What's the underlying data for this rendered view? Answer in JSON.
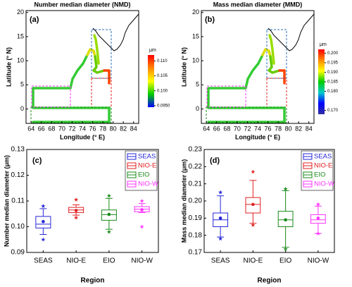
{
  "chart_data": [
    {
      "type": "map",
      "panel_label": "(a)",
      "title": "Number median diameter (NMD)",
      "x_label": "Longitude (° E)",
      "y_label": "Latitude (° N)",
      "xlim": [
        63,
        85
      ],
      "xticks": [
        64,
        66,
        68,
        70,
        72,
        74,
        76,
        78,
        80,
        82,
        84
      ],
      "ylim": [
        -3,
        20.4
      ],
      "yticks": [
        0,
        5,
        10,
        15,
        20
      ],
      "colorbar": {
        "unit": "μm",
        "lim": [
          0.0945,
          0.112
        ],
        "colors": [
          "#0000ff",
          "#00cc00",
          "#ffff00",
          "#ff8800",
          "#ff0000"
        ],
        "ticks": [
          {
            "value": 0.11,
            "label": "0.110"
          },
          0.105,
          {
            "value": 0.1,
            "label": "0.100"
          },
          {
            "value": 0.095,
            "label": "0.0950"
          }
        ]
      }
    },
    {
      "type": "map",
      "panel_label": "(b)",
      "title": "Mass median diameter (MMD)",
      "x_label": "Longitude (° E)",
      "y_label": "Latitude (° N)",
      "xlim": [
        63,
        85
      ],
      "xticks": [
        64,
        66,
        68,
        70,
        72,
        74,
        76,
        78,
        80,
        82,
        84
      ],
      "ylim": [
        -3,
        20.4
      ],
      "yticks": [
        0,
        5,
        10,
        15,
        20
      ],
      "colorbar": {
        "unit": "μm",
        "lim": [
          0.168,
          0.202
        ],
        "colors": [
          "#3030a0",
          "#0000ff",
          "#00cccc",
          "#00cc00",
          "#ffff00",
          "#ff8800",
          "#ff0000"
        ],
        "ticks": [
          {
            "value": 0.2,
            "label": "0.200"
          },
          0.195,
          {
            "value": 0.19,
            "label": "0.190"
          },
          0.185,
          {
            "value": 0.18,
            "label": "0.180"
          },
          {
            "value": 0.17,
            "label": "0.170"
          }
        ]
      }
    },
    {
      "type": "box",
      "panel_label": "(c)",
      "x_label": "Region",
      "y_label": "Number median diameter (μm)",
      "categories": [
        "SEAS",
        "NIO-E",
        "EIO",
        "NIO-W"
      ],
      "ylim": [
        0.09,
        0.13
      ],
      "yticks": [
        0.09,
        {
          "value": 0.1,
          "label": "0.10"
        },
        0.11,
        0.12,
        0.13
      ],
      "series": [
        {
          "name": "SEAS",
          "color": "#2626d9",
          "min": 0.097,
          "q1": 0.0995,
          "median": 0.101,
          "q3": 0.104,
          "max": 0.107,
          "mean": 0.102,
          "outliers": [
            0.095,
            0.108
          ]
        },
        {
          "name": "NIO-E",
          "color": "#e02020",
          "min": 0.1045,
          "q1": 0.1055,
          "median": 0.1065,
          "q3": 0.1075,
          "max": 0.1085,
          "mean": 0.1063,
          "outliers": [
            0.1035,
            0.1105
          ]
        },
        {
          "name": "EIO",
          "color": "#1a8a1a",
          "min": 0.099,
          "q1": 0.1025,
          "median": 0.1047,
          "q3": 0.1065,
          "max": 0.111,
          "mean": 0.1048,
          "outliers": [
            0.098,
            0.112
          ]
        },
        {
          "name": "NIO-W",
          "color": "#ff33ff",
          "min": 0.1055,
          "q1": 0.1058,
          "median": 0.1068,
          "q3": 0.1078,
          "max": 0.109,
          "mean": 0.1066,
          "outliers": [
            0.1,
            0.11
          ]
        }
      ]
    },
    {
      "type": "box",
      "panel_label": "(d)",
      "x_label": "Region",
      "y_label": "Mass median diameter (μm)",
      "categories": [
        "SEAS",
        "NIO-E",
        "EIO",
        "NIO-W"
      ],
      "ylim": [
        0.17,
        0.23
      ],
      "yticks": [
        0.17,
        0.18,
        0.19,
        {
          "value": 0.2,
          "label": "0.20"
        },
        0.21,
        0.22,
        0.23
      ],
      "series": [
        {
          "name": "SEAS",
          "color": "#2626d9",
          "min": 0.179,
          "q1": 0.185,
          "median": 0.189,
          "q3": 0.193,
          "max": 0.203,
          "mean": 0.19,
          "outliers": [
            0.178,
            0.205
          ]
        },
        {
          "name": "NIO-E",
          "color": "#e02020",
          "min": 0.187,
          "q1": 0.193,
          "median": 0.198,
          "q3": 0.202,
          "max": 0.212,
          "mean": 0.198,
          "outliers": [
            0.186,
            0.217
          ]
        },
        {
          "name": "EIO",
          "color": "#1a8a1a",
          "min": 0.173,
          "q1": 0.185,
          "median": 0.189,
          "q3": 0.194,
          "max": 0.206,
          "mean": 0.189,
          "outliers": [
            0.172,
            0.207
          ]
        },
        {
          "name": "NIO-W",
          "color": "#ff33ff",
          "min": 0.181,
          "q1": 0.187,
          "median": 0.189,
          "q3": 0.192,
          "max": 0.197,
          "mean": 0.19,
          "outliers": [
            0.181,
            0.198
          ]
        }
      ]
    }
  ]
}
